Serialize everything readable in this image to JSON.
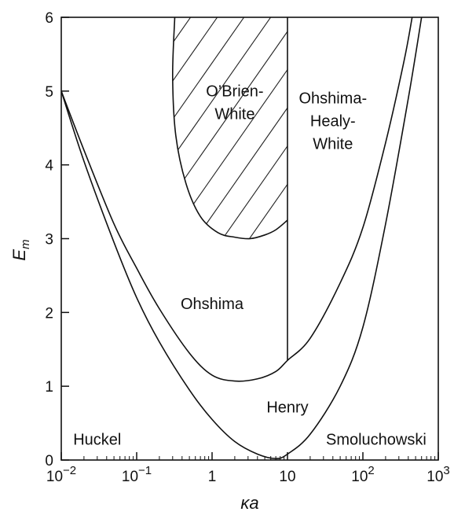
{
  "chart_data": {
    "type": "line",
    "xscale": "log",
    "xlim": [
      0.01,
      1000
    ],
    "ylim": [
      0,
      6
    ],
    "grid": false,
    "xlabel": "κa",
    "ylabel": "E",
    "ylabel_sub": "m",
    "x_ticks": [
      {
        "value": 0.01,
        "base": "10",
        "exp": "−2"
      },
      {
        "value": 0.1,
        "base": "10",
        "exp": "−1"
      },
      {
        "value": 1,
        "base": "1",
        "exp": ""
      },
      {
        "value": 10,
        "base": "10",
        "exp": ""
      },
      {
        "value": 100,
        "base": "10",
        "exp": "2"
      },
      {
        "value": 1000,
        "base": "10",
        "exp": "3"
      }
    ],
    "y_ticks": [
      0,
      1,
      2,
      3,
      4,
      5,
      6
    ],
    "curves": [
      {
        "id": "henry-lower-boundary",
        "points": [
          [
            0.01,
            5.0
          ],
          [
            0.02,
            4.05
          ],
          [
            0.05,
            2.95
          ],
          [
            0.1,
            2.2
          ],
          [
            0.2,
            1.6
          ],
          [
            0.5,
            0.95
          ],
          [
            1,
            0.55
          ],
          [
            2,
            0.25
          ],
          [
            4,
            0.08
          ],
          [
            7,
            0.02
          ],
          [
            10,
            0.08
          ],
          [
            20,
            0.35
          ],
          [
            50,
            1.0
          ],
          [
            100,
            1.8
          ],
          [
            200,
            3.2
          ],
          [
            400,
            4.9
          ],
          [
            600,
            6.0
          ]
        ]
      },
      {
        "id": "ohshima-lower-boundary",
        "points": [
          [
            0.01,
            5.0
          ],
          [
            0.02,
            4.2
          ],
          [
            0.05,
            3.2
          ],
          [
            0.1,
            2.6
          ],
          [
            0.2,
            2.05
          ],
          [
            0.5,
            1.45
          ],
          [
            1,
            1.15
          ],
          [
            2,
            1.07
          ],
          [
            4,
            1.1
          ],
          [
            7,
            1.2
          ],
          [
            10,
            1.35
          ],
          [
            20,
            1.65
          ],
          [
            50,
            2.4
          ],
          [
            100,
            3.15
          ],
          [
            200,
            4.3
          ],
          [
            350,
            5.4
          ],
          [
            450,
            6.0
          ]
        ]
      },
      {
        "id": "obrien-white-boundary",
        "points": [
          [
            0.32,
            6.0
          ],
          [
            0.3,
            5.2
          ],
          [
            0.33,
            4.4
          ],
          [
            0.45,
            3.75
          ],
          [
            0.7,
            3.3
          ],
          [
            1.2,
            3.08
          ],
          [
            2,
            3.02
          ],
          [
            3.2,
            3.0
          ],
          [
            5,
            3.05
          ],
          [
            7,
            3.12
          ],
          [
            10,
            3.25
          ]
        ]
      },
      {
        "id": "vertical-boundary-ka10",
        "points": [
          [
            10,
            1.35
          ],
          [
            10,
            6.0
          ]
        ]
      }
    ],
    "regions": [
      {
        "id": "obrien-white",
        "lines": [
          "O’Brien-",
          "White"
        ],
        "x": 2.0,
        "y": 4.85,
        "hatched": true
      },
      {
        "id": "ohshima-healy-white",
        "lines": [
          "Ohshima-",
          "Healy-",
          "White"
        ],
        "x": 40,
        "y": 4.6
      },
      {
        "id": "ohshima",
        "lines": [
          "Ohshima"
        ],
        "x": 1.0,
        "y": 2.12
      },
      {
        "id": "henry",
        "lines": [
          "Henry"
        ],
        "x": 10,
        "y": 0.72
      },
      {
        "id": "huckel",
        "lines": [
          "Huckel"
        ],
        "x": 0.03,
        "y": 0.28
      },
      {
        "id": "smoluchowski",
        "lines": [
          "Smoluchowski"
        ],
        "x": 150,
        "y": 0.28
      }
    ]
  }
}
